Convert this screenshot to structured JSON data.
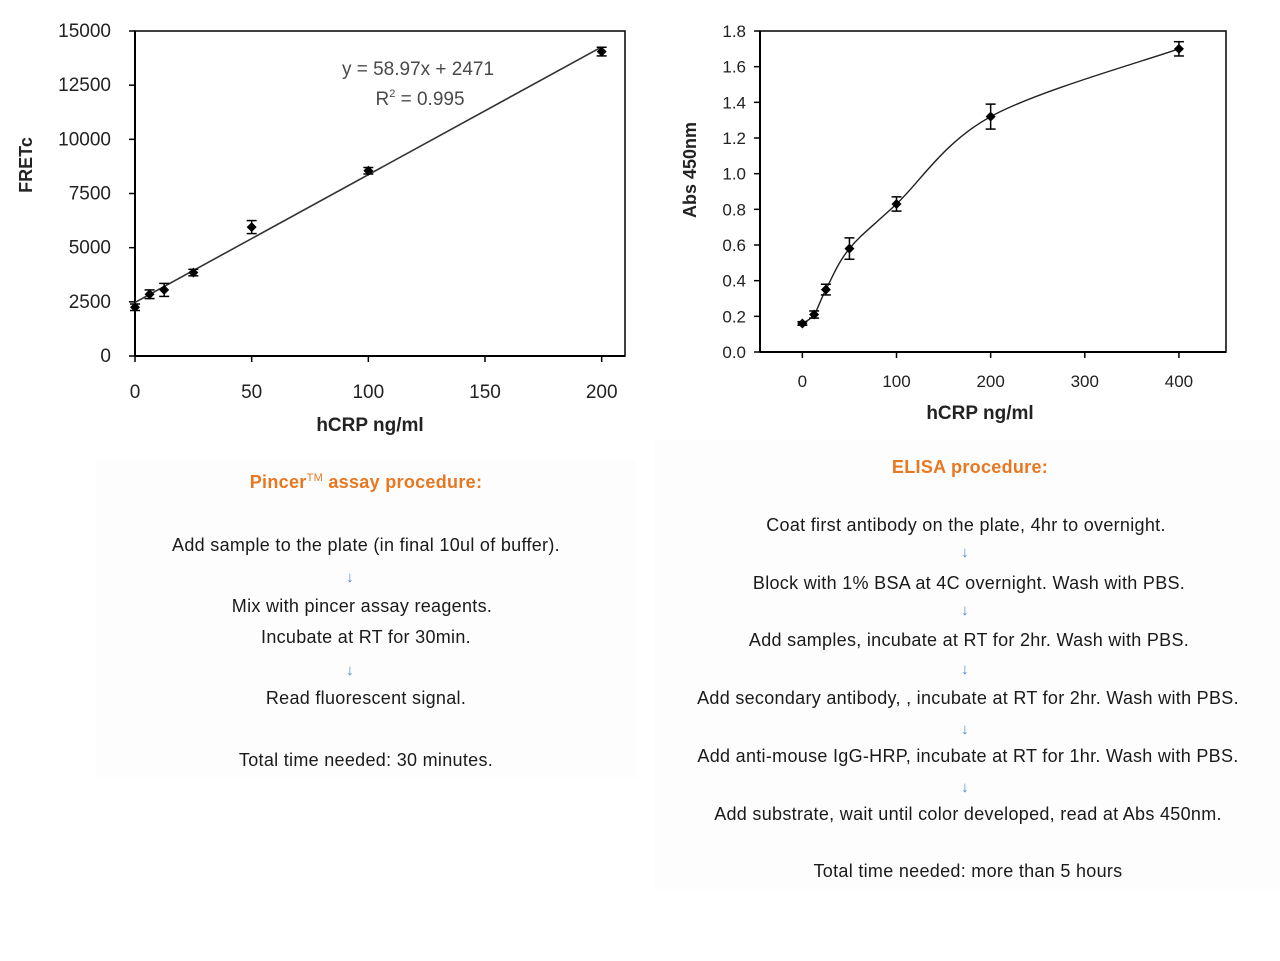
{
  "chart_data": [
    {
      "type": "scatter",
      "xlabel": "hCRP ng/ml",
      "ylabel": "FRETc",
      "xlim": [
        0,
        210
      ],
      "ylim": [
        0,
        15000
      ],
      "xticks": [
        "0",
        "50",
        "100",
        "150",
        "200"
      ],
      "yticks": [
        "0",
        "2500",
        "5000",
        "7500",
        "10000",
        "12500",
        "15000"
      ],
      "grid": false,
      "x": [
        0,
        6.25,
        12.5,
        25,
        50,
        100,
        200
      ],
      "y": [
        2250,
        2850,
        3050,
        3850,
        5950,
        8550,
        14050
      ],
      "error": [
        150,
        200,
        300,
        150,
        300,
        150,
        200
      ],
      "trendline": {
        "type": "linear",
        "slope": 58.97,
        "intercept": 2471,
        "equation": "y = 58.97x + 2471",
        "r2_label": "R",
        "r2_sup": "2",
        "r2_value": " = 0.995"
      }
    },
    {
      "type": "line",
      "xlabel": "hCRP ng/ml",
      "ylabel": "Abs 450nm",
      "xlim": [
        -45,
        450
      ],
      "ylim": [
        0,
        1.8
      ],
      "xticks": [
        "0",
        "100",
        "200",
        "300",
        "400"
      ],
      "yticks": [
        "0.0",
        "0.2",
        "0.4",
        "0.6",
        "0.8",
        "1.0",
        "1.2",
        "1.4",
        "1.6",
        "1.8"
      ],
      "grid": false,
      "x": [
        0,
        12.5,
        25,
        50,
        100,
        200,
        400
      ],
      "y": [
        0.16,
        0.21,
        0.35,
        0.58,
        0.83,
        1.32,
        1.7
      ],
      "error": [
        0.01,
        0.02,
        0.03,
        0.06,
        0.04,
        0.07,
        0.04
      ]
    }
  ],
  "pincer": {
    "title_main": "Pincer",
    "title_sup": "TM",
    "title_rest": " assay  procedure:",
    "step1": "Add sample to the plate  (in final 10ul of buffer).",
    "step2a": "Mix with  pincer assay  reagents.",
    "step2b": "Incubate at RT for 30min.",
    "step3": "Read fluorescent signal.",
    "total": "Total time  needed: 30 minutes.",
    "arrow": "↓"
  },
  "elisa": {
    "title": "ELISA procedure:",
    "steps": [
      "Coat first antibody on the plate, 4hr to overnight.",
      "Block with 1% BSA at 4C overnight.  Wash with PBS.",
      "Add samples, incubate at RT for 2hr. Wash with PBS.",
      "Add secondary antibody, , incubate at RT for 2hr. Wash with PBS.",
      "Add anti-mouse IgG-HRP, incubate at RT for 1hr. Wash with PBS.",
      "Add substrate, wait until color developed, read at Abs 450nm."
    ],
    "total": "Total time  needed:  more than 5 hours",
    "arrow": "↓"
  },
  "colors": {
    "title": "#e87722",
    "arrow": "#4a86d0",
    "marks": "#000000",
    "equation": "#4a4a4a"
  }
}
